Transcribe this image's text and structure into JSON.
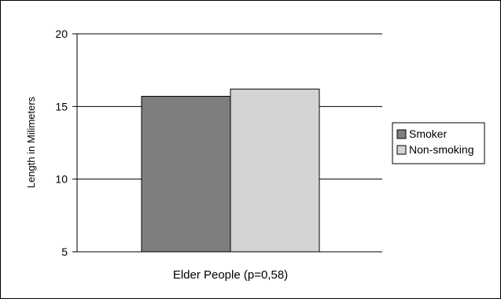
{
  "chart_data": {
    "type": "bar",
    "categories": [
      "Elder People (p=0,58)"
    ],
    "series": [
      {
        "name": "Smoker",
        "values": [
          15.7
        ],
        "color": "#7f7f7f"
      },
      {
        "name": "Non-smoking",
        "values": [
          16.2
        ],
        "color": "#d4d4d4"
      }
    ],
    "title": "",
    "xlabel": "Elder People (p=0,58)",
    "ylabel": "Length in Milimeters",
    "ylim": [
      5,
      20
    ],
    "yticks": [
      "5",
      "10",
      "15",
      "20"
    ],
    "grid": true,
    "legend_position": "right"
  }
}
